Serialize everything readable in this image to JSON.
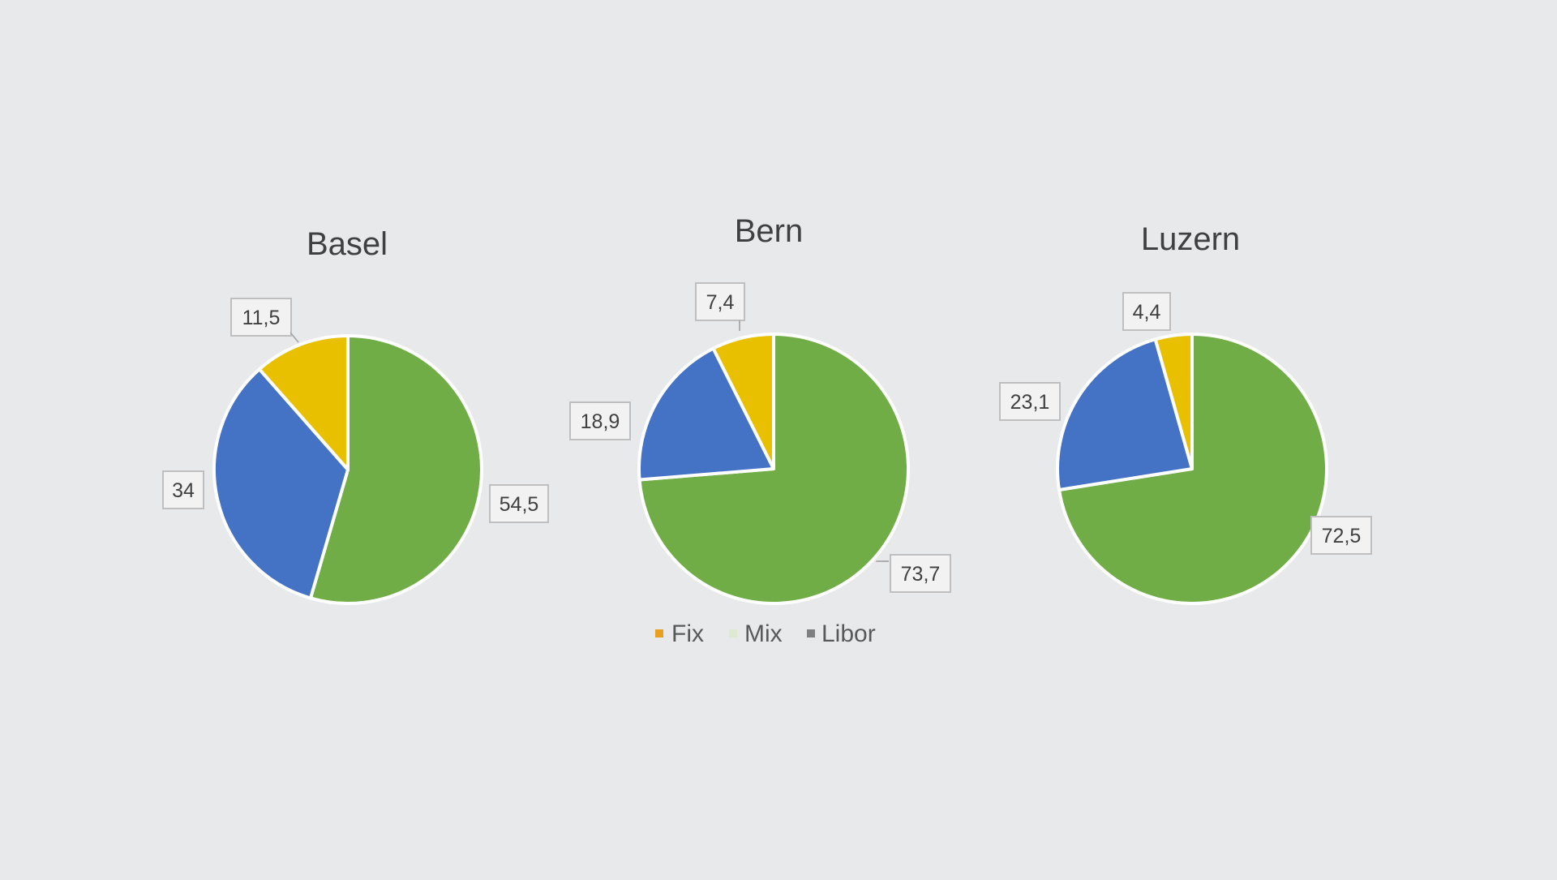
{
  "chart_data": [
    {
      "type": "pie",
      "title": "Basel",
      "slices": [
        {
          "label": "Fix",
          "value": 54.5,
          "display": "54,5",
          "color": "#70ad47"
        },
        {
          "label": "Mix",
          "value": 34,
          "display": "34",
          "color": "#4472c4"
        },
        {
          "label": "Libor",
          "value": 11.5,
          "display": "11,5",
          "color": "#e8c000"
        }
      ]
    },
    {
      "type": "pie",
      "title": "Bern",
      "slices": [
        {
          "label": "Fix",
          "value": 73.7,
          "display": "73,7",
          "color": "#70ad47"
        },
        {
          "label": "Mix",
          "value": 18.9,
          "display": "18,9",
          "color": "#4472c4"
        },
        {
          "label": "Libor",
          "value": 7.4,
          "display": "7,4",
          "color": "#e8c000"
        }
      ]
    },
    {
      "type": "pie",
      "title": "Luzern",
      "slices": [
        {
          "label": "Fix",
          "value": 72.5,
          "display": "72,5",
          "color": "#70ad47"
        },
        {
          "label": "Mix",
          "value": 23.1,
          "display": "23,1",
          "color": "#4472c4"
        },
        {
          "label": "Libor",
          "value": 4.4,
          "display": "4,4",
          "color": "#e8c000"
        }
      ]
    }
  ],
  "legend": {
    "placement": "bottom",
    "items": [
      {
        "label": "Fix",
        "color": "#e8a020"
      },
      {
        "label": "Mix",
        "color": "#dfe8d0"
      },
      {
        "label": "Libor",
        "color": "#7f7f7f"
      }
    ]
  }
}
